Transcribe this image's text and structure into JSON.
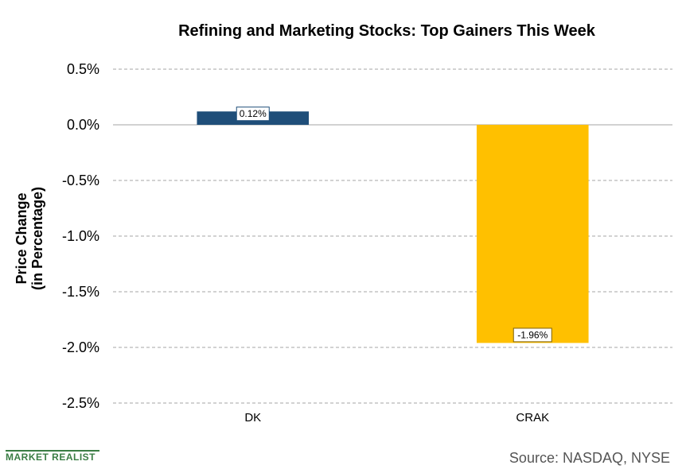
{
  "chart_data": {
    "type": "bar",
    "title": "Refining and Marketing Stocks: Top Gainers This Week",
    "ylabel_lines": [
      "Price Change",
      "(in Percentage)"
    ],
    "categories": [
      "DK",
      "CRAK"
    ],
    "values": [
      0.12,
      -1.96
    ],
    "data_labels": [
      "0.12%",
      "-1.96%"
    ],
    "bar_colors": [
      "#1f4e79",
      "#ffc000"
    ],
    "ylim": [
      -2.5,
      0.5
    ],
    "yticks": [
      0.5,
      0.0,
      -0.5,
      -1.0,
      -1.5,
      -2.0,
      -2.5
    ],
    "ytick_labels": [
      "0.5%",
      "0.0%",
      "-0.5%",
      "-1.0%",
      "-1.5%",
      "-2.0%",
      "-2.5%"
    ],
    "grid": true
  },
  "logo": {
    "text": "MARKET REALIST",
    "color": "#3a7d44"
  },
  "source": "Source:  NASDAQ, NYSE"
}
